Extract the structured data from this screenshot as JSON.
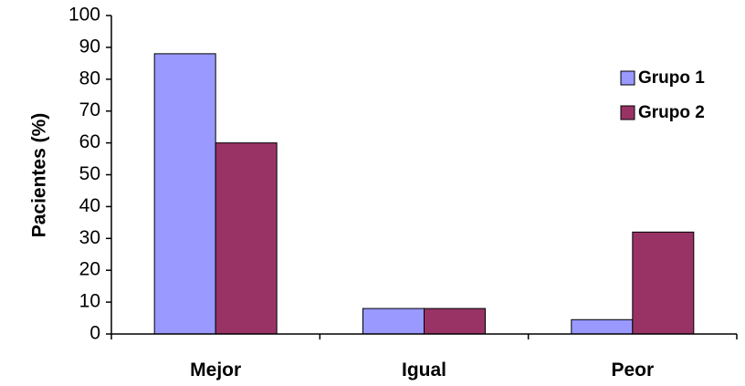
{
  "chart_data": {
    "type": "bar",
    "title": "",
    "xlabel": "",
    "ylabel": "Pacientes (%)",
    "ylim": [
      0,
      100
    ],
    "yticks": [
      0,
      10,
      20,
      30,
      40,
      50,
      60,
      70,
      80,
      90,
      100
    ],
    "categories": [
      "Mejor",
      "Igual",
      "Peor"
    ],
    "series": [
      {
        "name": "Grupo 1",
        "values": [
          88,
          8,
          4.5
        ],
        "color": "#9999ff"
      },
      {
        "name": "Grupo 2",
        "values": [
          60,
          8,
          32
        ],
        "color": "#993366"
      }
    ],
    "legend_position": "right",
    "grid": false
  }
}
